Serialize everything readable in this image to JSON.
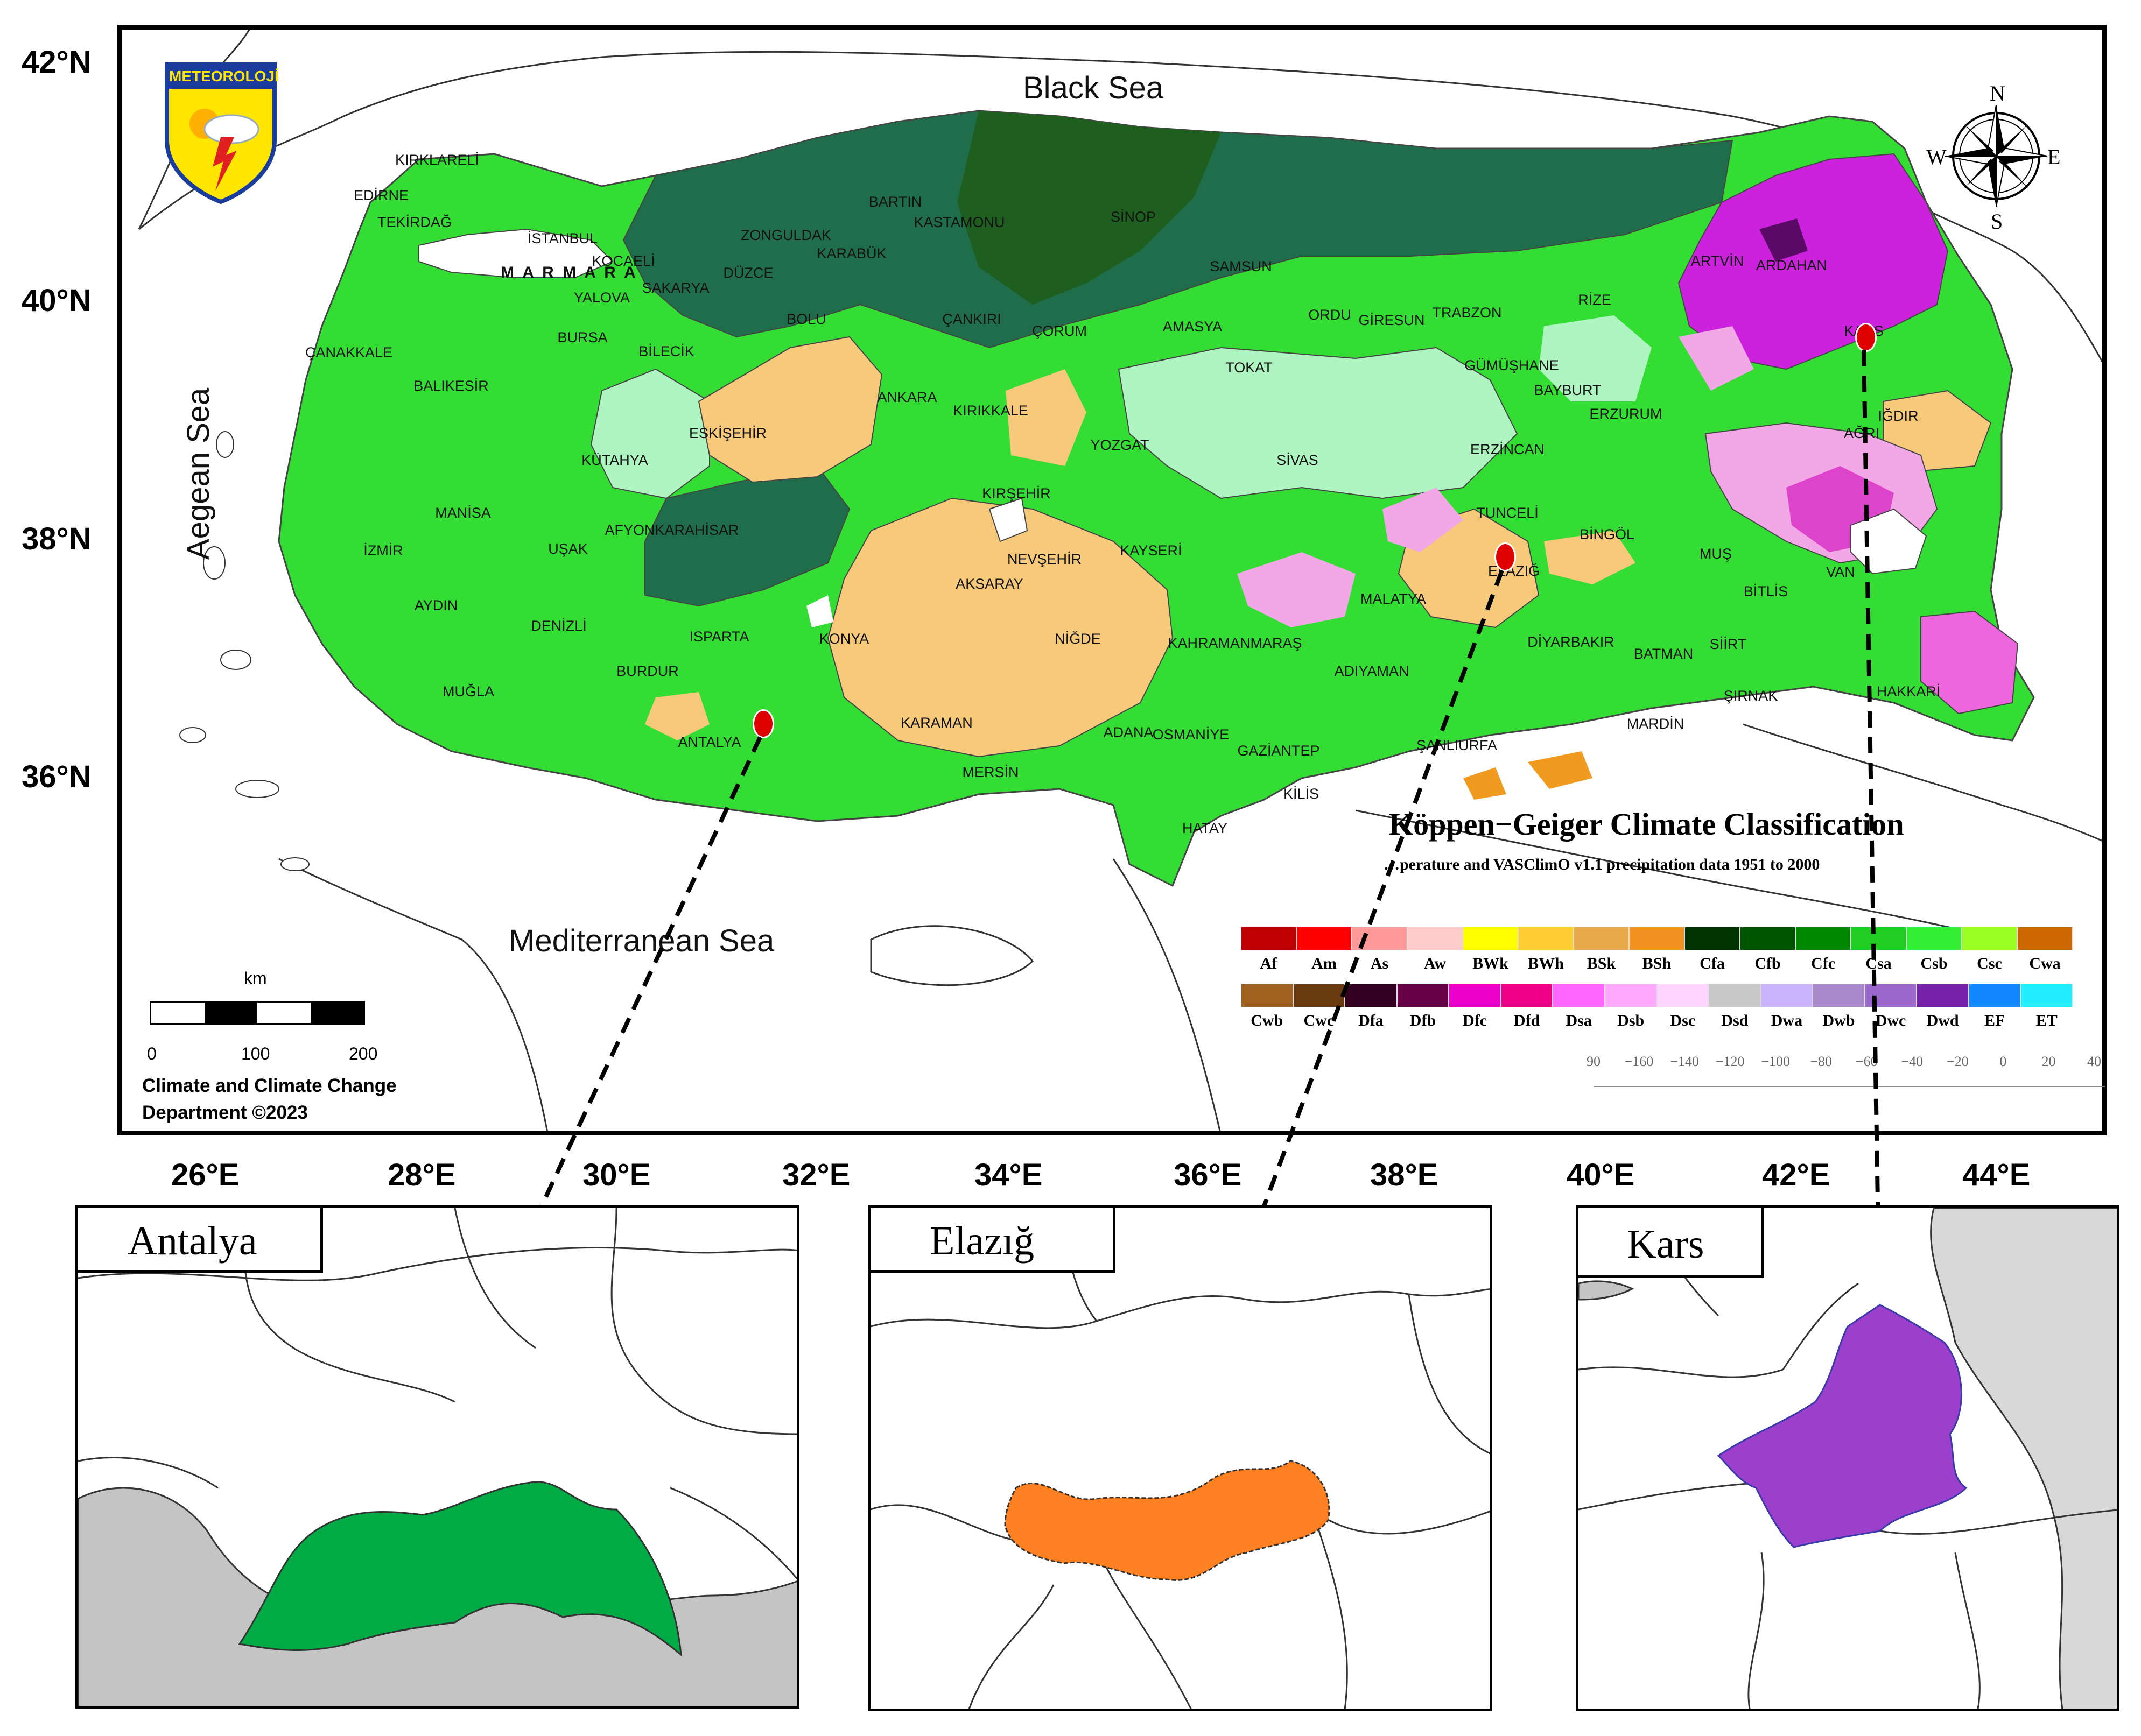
{
  "map": {
    "sea_labels": [
      "Black Sea",
      "Aegean Sea",
      "Mediterranean Sea"
    ],
    "marmara_label": "M A R M A R A",
    "logo_text": "METEOROLOJİ",
    "lat_labels": [
      "42°N",
      "40°N",
      "38°N",
      "36°N"
    ],
    "lon_labels": [
      "26°E",
      "28°E",
      "30°E",
      "32°E",
      "34°E",
      "36°E",
      "38°E",
      "40°E",
      "42°E",
      "44°E"
    ],
    "compass": {
      "n": "N",
      "s": "S",
      "e": "E",
      "w": "W"
    },
    "cities": [
      "KIRKLARELİ",
      "EDİRNE",
      "TEKİRDAĞ",
      "İSTANBUL",
      "KOCAELİ",
      "YALOVA",
      "SAKARYA",
      "DÜZCE",
      "ZONGULDAK",
      "BARTIN",
      "KARABÜK",
      "BOLU",
      "KASTAMONU",
      "SİNOP",
      "ÇANKIRI",
      "ÇORUM",
      "SAMSUN",
      "AMASYA",
      "ORDU",
      "GİRESUN",
      "TRABZON",
      "RİZE",
      "ARTVİN",
      "ARDAHAN",
      "KARS",
      "ÇANAKKALE",
      "BALIKESİR",
      "BURSA",
      "BİLECİK",
      "ESKİŞEHİR",
      "ANKARA",
      "KIRIKKALE",
      "YOZGAT",
      "TOKAT",
      "SİVAS",
      "GÜMÜŞHANE",
      "BAYBURT",
      "ERZURUM",
      "ERZİNCAN",
      "AĞRI",
      "IĞDIR",
      "KÜTAHYA",
      "MANİSA",
      "İZMİR",
      "AYDIN",
      "UŞAK",
      "AFYONKARAHİSAR",
      "KIRŞEHİR",
      "NEVŞEHİR",
      "KAYSERİ",
      "AKSARAY",
      "TUNCELİ",
      "BİNGÖL",
      "MUŞ",
      "BİTLİS",
      "VAN",
      "ELAZIĞ",
      "MALATYA",
      "DENİZLİ",
      "ISPARTA",
      "BURDUR",
      "MUĞLA",
      "ANTALYA",
      "KONYA",
      "NİĞDE",
      "KARAMAN",
      "MERSİN",
      "ADANA",
      "OSMANİYE",
      "KAHRAMANMARAŞ",
      "ADIYAMAN",
      "GAZİANTEP",
      "KİLİS",
      "HATAY",
      "ŞANLIURFA",
      "MARDİN",
      "DİYARBAKIR",
      "BATMAN",
      "SİİRT",
      "ŞIRNAK",
      "HAKKARİ"
    ],
    "scale": {
      "unit": "km",
      "labels": [
        "0",
        "100",
        "200"
      ]
    },
    "credit": [
      "Climate and Climate Change",
      "Department ©2023"
    ]
  },
  "legend": {
    "title": "Köppen−Geiger Climate Classification",
    "subtitle": "…perature and VASClimO v1.1 precipitation data 1951 to 2000",
    "row1": [
      {
        "code": "Af",
        "color": "#c00000"
      },
      {
        "code": "Am",
        "color": "#ff0000"
      },
      {
        "code": "As",
        "color": "#ff9999"
      },
      {
        "code": "Aw",
        "color": "#ffcccc"
      },
      {
        "code": "BWk",
        "color": "#ffff00"
      },
      {
        "code": "BWh",
        "color": "#ffcc33"
      },
      {
        "code": "BSk",
        "color": "#e6a84a"
      },
      {
        "code": "BSh",
        "color": "#f09020"
      },
      {
        "code": "Cfa",
        "color": "#003300"
      },
      {
        "code": "Cfb",
        "color": "#005500"
      },
      {
        "code": "Cfc",
        "color": "#008800"
      },
      {
        "code": "Csa",
        "color": "#22cc22"
      },
      {
        "code": "Csb",
        "color": "#33ee33"
      },
      {
        "code": "Csc",
        "color": "#99ff22"
      },
      {
        "code": "Cwa",
        "color": "#cc6600"
      }
    ],
    "row2": [
      {
        "code": "Cwb",
        "color": "#a06020"
      },
      {
        "code": "Cwc",
        "color": "#6a3a10"
      },
      {
        "code": "Dfa",
        "color": "#330022"
      },
      {
        "code": "Dfb",
        "color": "#660044"
      },
      {
        "code": "Dfc",
        "color": "#ee00cc"
      },
      {
        "code": "Dfd",
        "color": "#ee0088"
      },
      {
        "code": "Dsa",
        "color": "#ff66ff"
      },
      {
        "code": "Dsb",
        "color": "#ffaaff"
      },
      {
        "code": "Dsc",
        "color": "#ffd6ff"
      },
      {
        "code": "Dsd",
        "color": "#c8c8c8"
      },
      {
        "code": "Dwa",
        "color": "#ccb3ff"
      },
      {
        "code": "Dwb",
        "color": "#aa88cc"
      },
      {
        "code": "Dwc",
        "color": "#9966cc"
      },
      {
        "code": "Dwd",
        "color": "#7722aa"
      },
      {
        "code": "EF",
        "color": "#1188ff"
      },
      {
        "code": "ET",
        "color": "#22eeff"
      }
    ],
    "axis_ticks": [
      "90",
      "−160",
      "−140",
      "−120",
      "−100",
      "−80",
      "−60",
      "−40",
      "−20",
      "0",
      "20",
      "40"
    ]
  },
  "insets": [
    {
      "title": "Antalya",
      "fill": "#00aa44"
    },
    {
      "title": "Elazığ",
      "fill": "#ff8020"
    },
    {
      "title": "Kars",
      "fill": "#9b3fcc"
    }
  ]
}
